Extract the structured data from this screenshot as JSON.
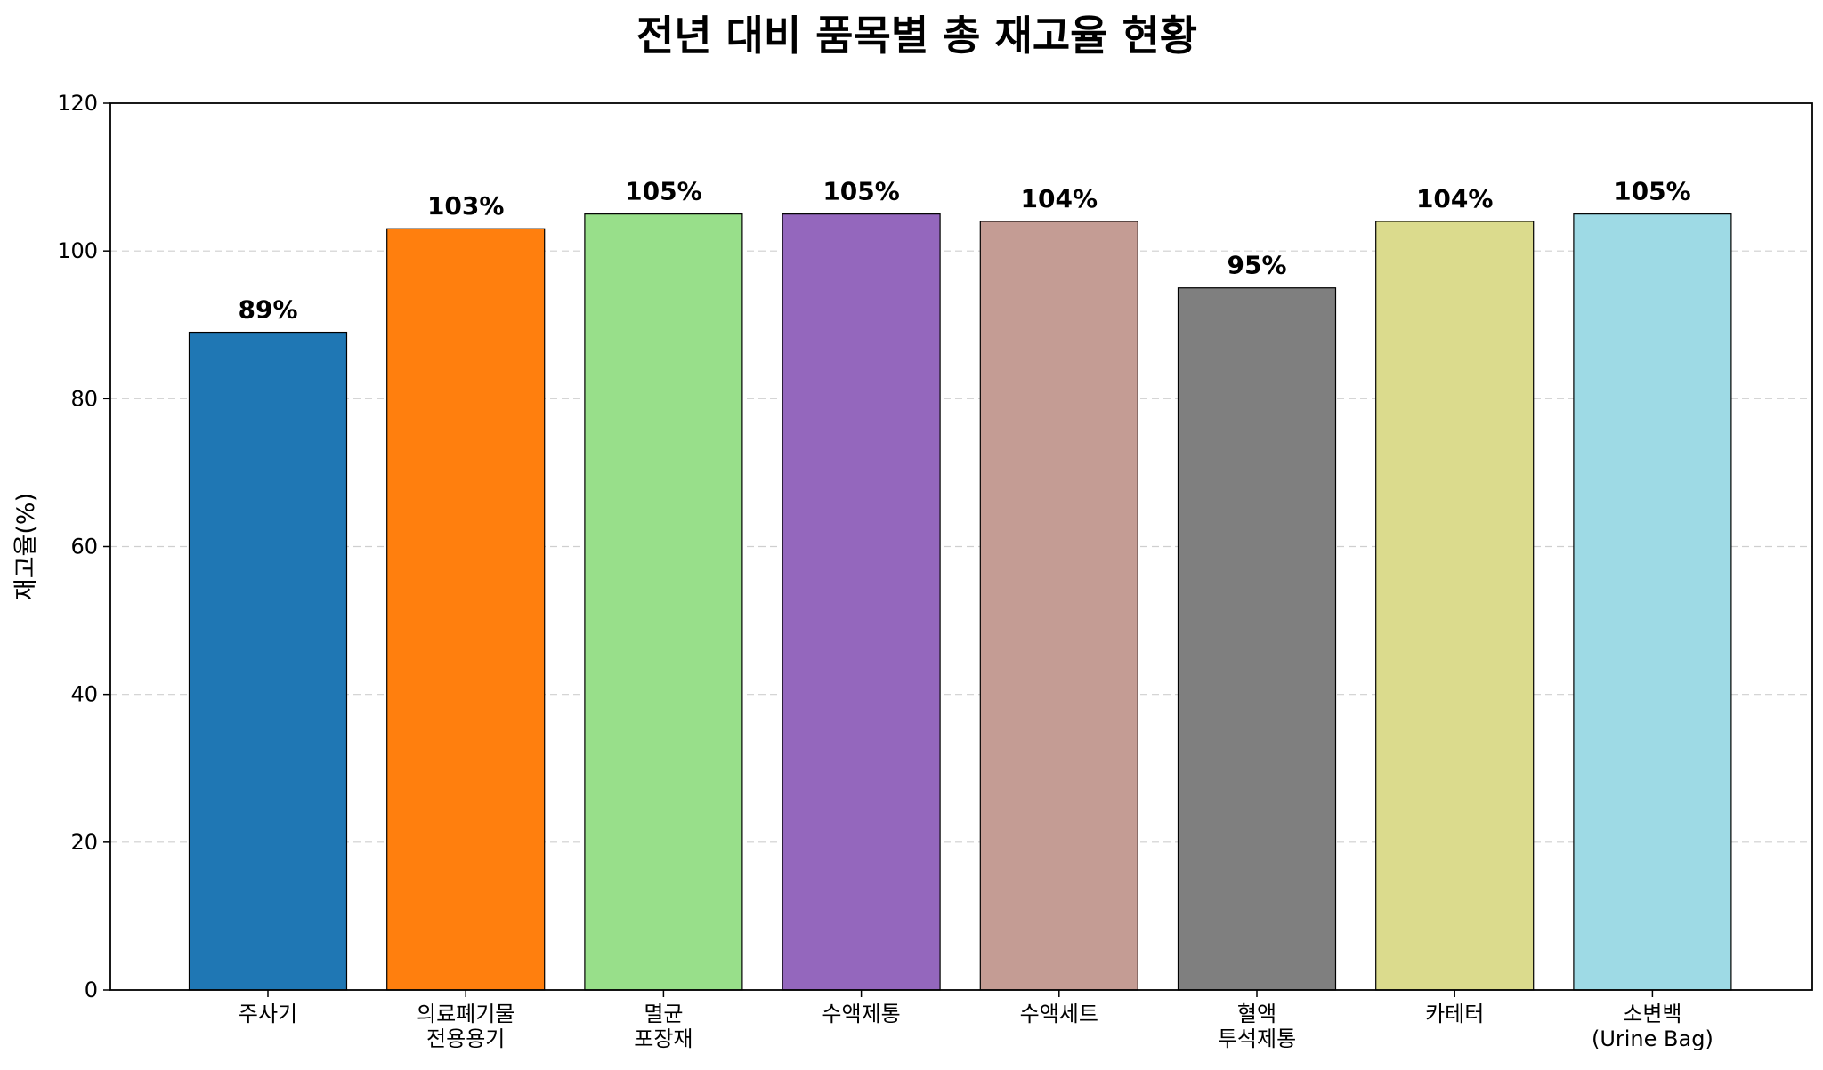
{
  "chart_data": {
    "type": "bar",
    "title": "전년 대비 품목별 총 재고율 현황",
    "xlabel": "",
    "ylabel": "재고율(%)",
    "ylim": [
      0,
      120
    ],
    "yticks": [
      0,
      20,
      40,
      60,
      80,
      100,
      120
    ],
    "grid": "y-axis dashed",
    "categories": [
      [
        "주사기"
      ],
      [
        "의료폐기물",
        "전용용기"
      ],
      [
        "멸균",
        "포장재"
      ],
      [
        "수액제통"
      ],
      [
        "수액세트"
      ],
      [
        "혈액",
        "투석제통"
      ],
      [
        "카테터"
      ],
      [
        "소변백",
        "(Urine Bag)"
      ]
    ],
    "values": [
      89,
      103,
      105,
      105,
      104,
      95,
      104,
      105
    ],
    "data_labels": [
      "89%",
      "103%",
      "105%",
      "105%",
      "104%",
      "95%",
      "104%",
      "105%"
    ],
    "colors": [
      "#1f77b4",
      "#ff7f0e",
      "#98df8a",
      "#9467bd",
      "#c49c94",
      "#7f7f7f",
      "#dbdb8d",
      "#9edae5"
    ]
  }
}
